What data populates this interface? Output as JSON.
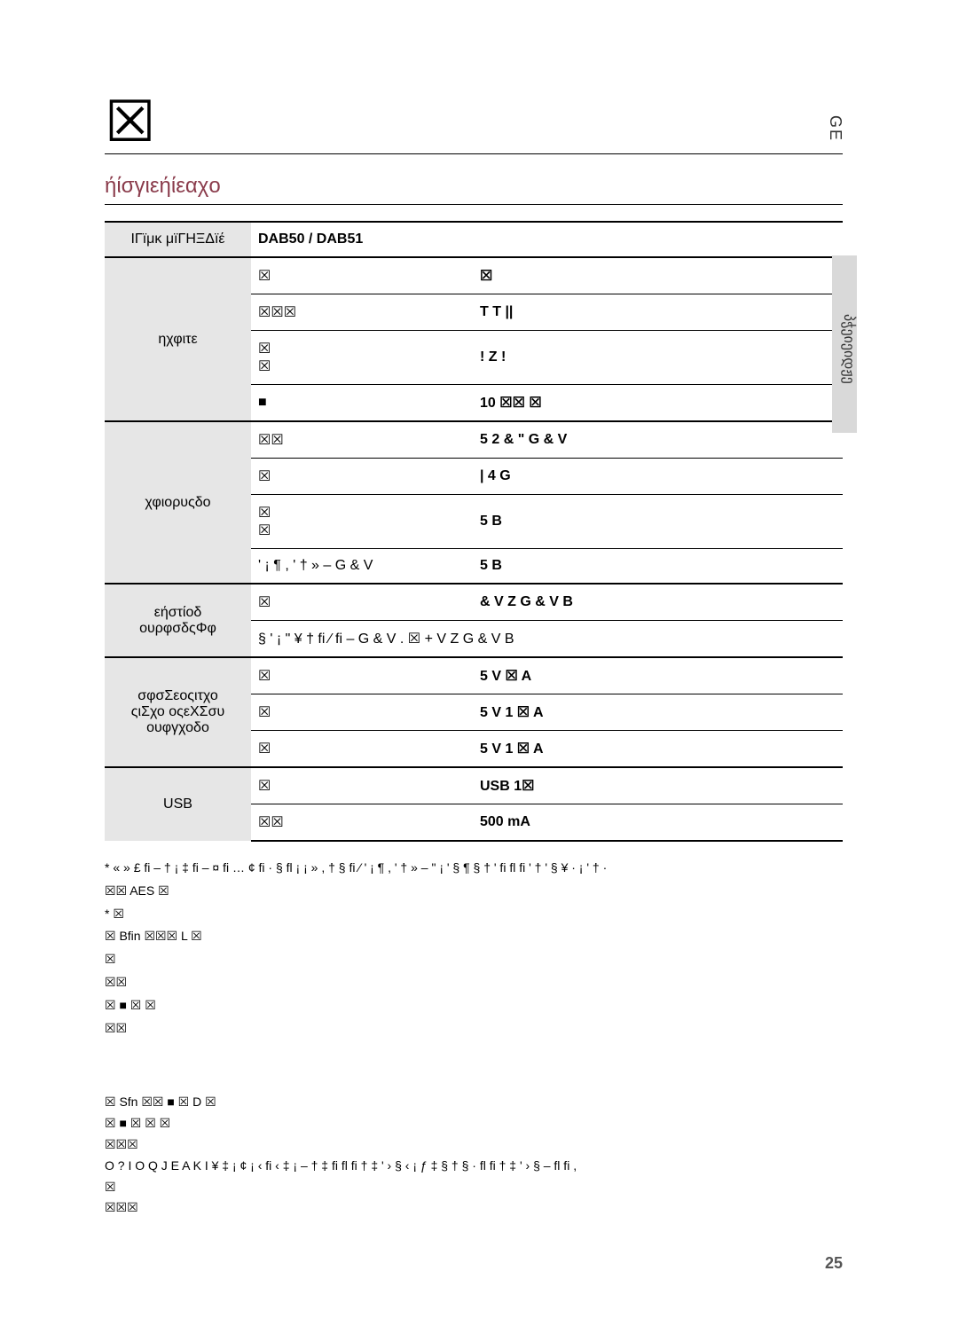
{
  "side_ge": "GE",
  "side_label": "პჭეიეიდჟე",
  "big_glyph": "☒",
  "section_title": "ήίσγιεήίεαχо",
  "table": {
    "model_row": {
      "label": "ΙΓïμκ μïΓΗΞΔïέ",
      "value": "DAB50 / DAB51"
    },
    "groups": [
      {
        "label": "ηχφιτε",
        "rows": [
          {
            "key": "☒",
            "val": "☒"
          },
          {
            "key": "☒☒☒",
            "val": "T         T          ||"
          },
          {
            "key": "☒\n☒",
            "val": "! Z        !"
          },
          {
            "key": "■",
            "val": "10 ☒☒ ☒"
          }
        ]
      },
      {
        "label": "χφιορυςδο",
        "rows": [
          {
            "key": "☒☒",
            "val": "5        2 & \"              G & V"
          },
          {
            "key": "☒",
            "val": "| 4       G"
          },
          {
            "key": "☒\n☒",
            "val": "5 B"
          },
          {
            "key": "' ¡ ¶ ,  ' †  » –        G & V",
            "val": "5 B"
          }
        ]
      },
      {
        "label": "εήστίοδ\nουρφσδςΦφ",
        "rows": [
          {
            "key": "☒",
            "val": "& V  Z       G & V        B"
          },
          {
            "key": "§  ' ¡ \"    ¥  † fi ⁄ fi –       G & V  . ☒ + V  Z       G & V        B",
            "val": ""
          }
        ]
      },
      {
        "label": "σφσΣεοςιτχο\nςιΣχο οςεΧΣσυ\nουφγχοδο",
        "rows": [
          {
            "key": "☒",
            "val": "5 V ☒ A"
          },
          {
            "key": "☒",
            "val": "5 V 1 ☒  A"
          },
          {
            "key": "☒",
            "val": "5 V 1 ☒  A"
          }
        ]
      },
      {
        "label": "USB",
        "rows": [
          {
            "key": "☒",
            "val": "USB 1☒"
          },
          {
            "key": "☒☒",
            "val": "500 mA"
          }
        ]
      }
    ]
  },
  "footnotes": [
    "*    « » £ fi –  †   ¡ ‡ fi –  ¤ fi  … ¢ fi ·    §  fl ¡  ¡   »   , † §   fi  ⁄ ' ¡ ¶ , ' †  » –  \" ¡ '  §  ¶  § † '  fi fl fi '  † '  §  ¥ · ¡ ' † ·",
    "☒☒ AES ☒",
    "* ☒",
    "☒ Bfin ☒☒☒ L ☒",
    "☒",
    "☒☒",
    "☒ ■ ☒ ☒",
    "☒☒"
  ],
  "license": [
    "☒ Sfn ☒☒ ■ ☒ D ☒",
    "☒ ■ ☒ ☒ ☒",
    "☒☒☒",
    "O ? I O Q J E   A K I     ¥ ‡ ¡ ¢ ¡   ‹ fi ‹ ‡ ¡ –   † ‡ fi     fl fi † ‡   ' › §     ‹ ¡  ƒ   ‡ § † §  · fl fi † ‡   ' › § –   fl   fi ,",
    "☒",
    "☒☒☒"
  ],
  "page_number": "25"
}
